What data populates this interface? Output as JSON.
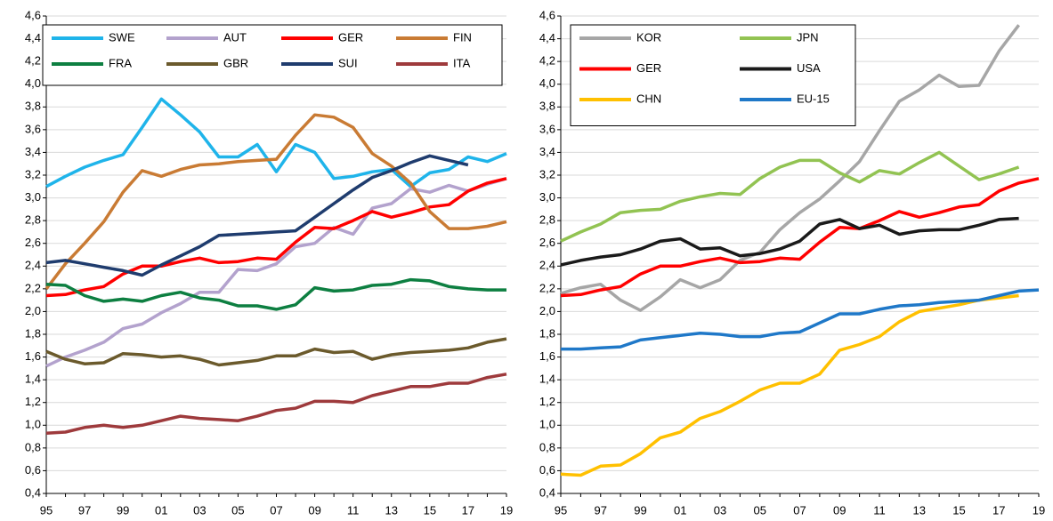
{
  "chart_data": [
    {
      "type": "line",
      "categories": [
        "95",
        null,
        "97",
        null,
        "99",
        null,
        "01",
        null,
        "03",
        null,
        "05",
        null,
        "07",
        null,
        "09",
        null,
        "11",
        null,
        "13",
        null,
        "15",
        null,
        "17",
        null,
        "19"
      ],
      "ylim": [
        0.4,
        4.6
      ],
      "yticks": [
        {
          "value": 0.4,
          "label": "0,4"
        },
        {
          "value": 0.6,
          "label": "0,6"
        },
        {
          "value": 0.8,
          "label": "0,8"
        },
        {
          "value": 1.0,
          "label": "1,0"
        },
        {
          "value": 1.2,
          "label": "1,2"
        },
        {
          "value": 1.4,
          "label": "1,4"
        },
        {
          "value": 1.6,
          "label": "1,6"
        },
        {
          "value": 1.8,
          "label": "1,8"
        },
        {
          "value": 2.0,
          "label": "2,0"
        },
        {
          "value": 2.2,
          "label": "2,2"
        },
        {
          "value": 2.4,
          "label": "2,4"
        },
        {
          "value": 2.6,
          "label": "2,6"
        },
        {
          "value": 2.8,
          "label": "2,8"
        },
        {
          "value": 3.0,
          "label": "3,0"
        },
        {
          "value": 3.2,
          "label": "3,2"
        },
        {
          "value": 3.4,
          "label": "3,4"
        },
        {
          "value": 3.6,
          "label": "3,6"
        },
        {
          "value": 3.8,
          "label": "3,8"
        },
        {
          "value": 4.0,
          "label": "4,0"
        },
        {
          "value": 4.2,
          "label": "4,2"
        },
        {
          "value": 4.4,
          "label": "4,4"
        },
        {
          "value": 4.6,
          "label": "4,6"
        }
      ],
      "grid": true,
      "legend": "top-left",
      "series": [
        {
          "name": "SWE",
          "color": "#1fb4ea",
          "values": [
            3.1,
            3.19,
            3.27,
            3.33,
            3.38,
            3.62,
            3.87,
            3.73,
            3.58,
            3.36,
            3.36,
            3.47,
            3.23,
            3.47,
            3.4,
            3.17,
            3.19,
            3.23,
            3.25,
            3.1,
            3.22,
            3.25,
            3.36,
            3.32,
            3.39
          ]
        },
        {
          "name": "AUT",
          "color": "#b3a2cd",
          "values": [
            1.52,
            1.6,
            1.66,
            1.73,
            1.85,
            1.89,
            1.99,
            2.07,
            2.17,
            2.17,
            2.37,
            2.36,
            2.42,
            2.57,
            2.6,
            2.74,
            2.68,
            2.91,
            2.95,
            3.08,
            3.05,
            3.11,
            3.06,
            3.12,
            3.17
          ]
        },
        {
          "name": "GER",
          "color": "#ff0000",
          "values": [
            2.14,
            2.15,
            2.19,
            2.22,
            2.33,
            2.4,
            2.4,
            2.44,
            2.47,
            2.43,
            2.44,
            2.47,
            2.46,
            2.61,
            2.74,
            2.73,
            2.8,
            2.88,
            2.83,
            2.87,
            2.92,
            2.94,
            3.06,
            3.13,
            3.17
          ]
        },
        {
          "name": "FIN",
          "color": "#c97b34",
          "values": [
            2.2,
            2.42,
            2.6,
            2.79,
            3.05,
            3.24,
            3.19,
            3.25,
            3.29,
            3.3,
            3.32,
            3.33,
            3.34,
            3.55,
            3.73,
            3.71,
            3.62,
            3.39,
            3.28,
            3.13,
            2.88,
            2.73,
            2.73,
            2.75,
            2.79
          ]
        },
        {
          "name": "FRA",
          "color": "#0d7f41",
          "values": [
            2.24,
            2.23,
            2.14,
            2.09,
            2.11,
            2.09,
            2.14,
            2.17,
            2.12,
            2.1,
            2.05,
            2.05,
            2.02,
            2.06,
            2.21,
            2.18,
            2.19,
            2.23,
            2.24,
            2.28,
            2.27,
            2.22,
            2.2,
            2.19,
            2.19
          ]
        },
        {
          "name": "GBR",
          "color": "#6b5a2c",
          "values": [
            1.65,
            1.58,
            1.54,
            1.55,
            1.63,
            1.62,
            1.6,
            1.61,
            1.58,
            1.53,
            1.55,
            1.57,
            1.61,
            1.61,
            1.67,
            1.64,
            1.65,
            1.58,
            1.62,
            1.64,
            1.65,
            1.66,
            1.68,
            1.73,
            1.76
          ]
        },
        {
          "name": "SUI",
          "color": "#1f3c6e",
          "values": [
            2.43,
            2.45,
            2.42,
            2.39,
            2.36,
            2.32,
            2.41,
            2.49,
            2.57,
            2.67,
            2.68,
            2.69,
            2.7,
            2.71,
            2.83,
            2.95,
            3.07,
            3.18,
            3.24,
            3.31,
            3.37,
            3.33,
            3.29,
            null,
            null
          ]
        },
        {
          "name": "ITA",
          "color": "#9e3a3c",
          "values": [
            0.93,
            0.94,
            0.98,
            1.0,
            0.98,
            1.0,
            1.04,
            1.08,
            1.06,
            1.05,
            1.04,
            1.08,
            1.13,
            1.15,
            1.21,
            1.21,
            1.2,
            1.26,
            1.3,
            1.34,
            1.34,
            1.37,
            1.37,
            1.42,
            1.45
          ]
        }
      ]
    },
    {
      "type": "line",
      "categories": [
        "95",
        null,
        "97",
        null,
        "99",
        null,
        "01",
        null,
        "03",
        null,
        "05",
        null,
        "07",
        null,
        "09",
        null,
        "11",
        null,
        "13",
        null,
        "15",
        null,
        "17",
        null,
        "19"
      ],
      "ylim": [
        0.4,
        4.6
      ],
      "yticks": [
        {
          "value": 0.4,
          "label": "0,4"
        },
        {
          "value": 0.6,
          "label": "0,6"
        },
        {
          "value": 0.8,
          "label": "0,8"
        },
        {
          "value": 1.0,
          "label": "1,0"
        },
        {
          "value": 1.2,
          "label": "1,2"
        },
        {
          "value": 1.4,
          "label": "1,4"
        },
        {
          "value": 1.6,
          "label": "1,6"
        },
        {
          "value": 1.8,
          "label": "1,8"
        },
        {
          "value": 2.0,
          "label": "2,0"
        },
        {
          "value": 2.2,
          "label": "2,2"
        },
        {
          "value": 2.4,
          "label": "2,4"
        },
        {
          "value": 2.6,
          "label": "2,6"
        },
        {
          "value": 2.8,
          "label": "2,8"
        },
        {
          "value": 3.0,
          "label": "3,0"
        },
        {
          "value": 3.2,
          "label": "3,2"
        },
        {
          "value": 3.4,
          "label": "3,4"
        },
        {
          "value": 3.6,
          "label": "3,6"
        },
        {
          "value": 3.8,
          "label": "3,8"
        },
        {
          "value": 4.0,
          "label": "4,0"
        },
        {
          "value": 4.2,
          "label": "4,2"
        },
        {
          "value": 4.4,
          "label": "4,4"
        },
        {
          "value": 4.6,
          "label": "4,6"
        }
      ],
      "grid": true,
      "legend": "top-left",
      "series": [
        {
          "name": "KOR",
          "color": "#a6a6a6",
          "values": [
            2.16,
            2.21,
            2.24,
            2.1,
            2.01,
            2.13,
            2.28,
            2.21,
            2.28,
            2.45,
            2.52,
            2.72,
            2.87,
            2.99,
            3.15,
            3.32,
            3.59,
            3.85,
            3.95,
            4.08,
            3.98,
            3.99,
            4.29,
            4.52,
            null
          ]
        },
        {
          "name": "JPN",
          "color": "#92c352",
          "values": [
            2.62,
            2.7,
            2.77,
            2.87,
            2.89,
            2.9,
            2.97,
            3.01,
            3.04,
            3.03,
            3.17,
            3.27,
            3.33,
            3.33,
            3.22,
            3.14,
            3.24,
            3.21,
            3.31,
            3.4,
            3.28,
            3.16,
            3.21,
            3.27,
            null
          ]
        },
        {
          "name": "GER",
          "color": "#ff0000",
          "values": [
            2.14,
            2.15,
            2.19,
            2.22,
            2.33,
            2.4,
            2.4,
            2.44,
            2.47,
            2.43,
            2.44,
            2.47,
            2.46,
            2.61,
            2.74,
            2.73,
            2.8,
            2.88,
            2.83,
            2.87,
            2.92,
            2.94,
            3.06,
            3.13,
            3.17
          ]
        },
        {
          "name": "USA",
          "color": "#1a1a1a",
          "values": [
            2.41,
            2.45,
            2.48,
            2.5,
            2.55,
            2.62,
            2.64,
            2.55,
            2.56,
            2.49,
            2.51,
            2.55,
            2.62,
            2.77,
            2.81,
            2.73,
            2.76,
            2.68,
            2.71,
            2.72,
            2.72,
            2.76,
            2.81,
            2.82,
            null
          ]
        },
        {
          "name": "CHN",
          "color": "#ffc000",
          "values": [
            0.57,
            0.56,
            0.64,
            0.65,
            0.75,
            0.89,
            0.94,
            1.06,
            1.12,
            1.21,
            1.31,
            1.37,
            1.37,
            1.45,
            1.66,
            1.71,
            1.78,
            1.91,
            2.0,
            2.03,
            2.06,
            2.1,
            2.12,
            2.14,
            null
          ]
        },
        {
          "name": "EU-15",
          "color": "#1f78c8",
          "values": [
            1.67,
            1.67,
            1.68,
            1.69,
            1.75,
            1.77,
            1.79,
            1.81,
            1.8,
            1.78,
            1.78,
            1.81,
            1.82,
            1.9,
            1.98,
            1.98,
            2.02,
            2.05,
            2.06,
            2.08,
            2.09,
            2.1,
            2.14,
            2.18,
            2.19
          ]
        }
      ]
    }
  ]
}
